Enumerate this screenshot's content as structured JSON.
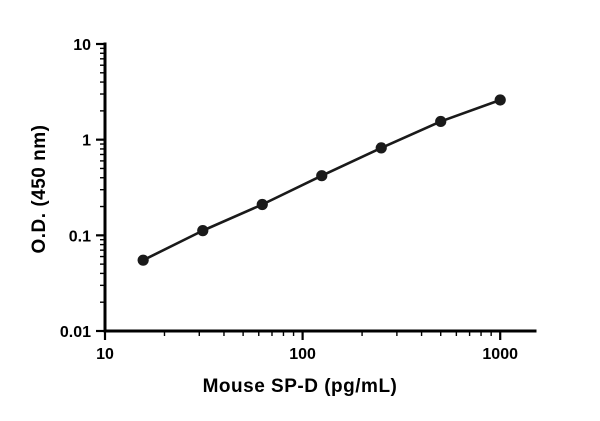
{
  "chart_data": {
    "type": "scatter",
    "title": "",
    "xlabel": "Mouse SP-D (pg/mL)",
    "ylabel": "O.D. (450 nm)",
    "x_scale": "log",
    "y_scale": "log",
    "xlim": [
      10,
      1500
    ],
    "ylim": [
      0.01,
      10
    ],
    "x_ticks": [
      10,
      100,
      1000
    ],
    "x_tick_labels": [
      "10",
      "100",
      "1000"
    ],
    "y_ticks": [
      0.01,
      0.1,
      1,
      10
    ],
    "y_tick_labels": [
      "0.01",
      "0.1",
      "1",
      "10"
    ],
    "grid": false,
    "legend": false,
    "series": [
      {
        "name": "standard-curve",
        "marker": "circle",
        "line": true,
        "x": [
          15.6,
          31.25,
          62.5,
          125,
          250,
          500,
          1000
        ],
        "y": [
          0.055,
          0.112,
          0.21,
          0.42,
          0.82,
          1.55,
          2.6
        ]
      }
    ],
    "colors": {
      "axis": "#000000",
      "line": "#1a1a1a",
      "marker": "#1a1a1a",
      "tick_label": "#000000"
    }
  }
}
